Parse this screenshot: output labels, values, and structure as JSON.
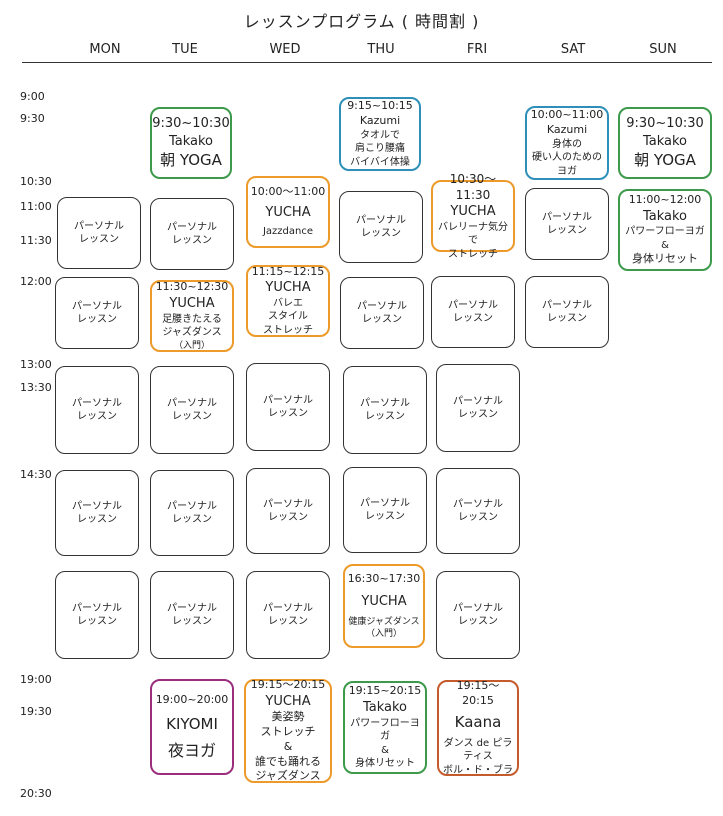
{
  "title": "レッスンプログラム ( 時間割 )",
  "days": [
    "MON",
    "TUE",
    "WED",
    "THU",
    "FRI",
    "SAT",
    "SUN"
  ],
  "times": [
    "9:00",
    "9:30",
    "10:30",
    "11:00",
    "11:30",
    "12:00",
    "13:00",
    "13:30",
    "14:30",
    "19:00",
    "19:30",
    "20:30"
  ],
  "personal": [
    "パーソナル",
    "レッスン"
  ],
  "colors": {
    "green": "#3c9a4a",
    "blue": "#2e8fb9",
    "orange": "#ec9a2a",
    "purple": "#9b2f7e",
    "brown": "#c55a2c"
  },
  "events": [
    {
      "id": "tue-930",
      "lines": [
        "9:30~10:30",
        "Takako",
        "朝 YOGA"
      ]
    },
    {
      "id": "thu-915",
      "lines": [
        "9:15~10:15",
        "Kazumi",
        "タオルで",
        "肩こり腰痛",
        "バイバイ体操"
      ]
    },
    {
      "id": "sat-1000",
      "lines": [
        "10:00~11:00",
        "Kazumi",
        "身体の",
        "硬い人のための",
        "ヨガ"
      ]
    },
    {
      "id": "sun-930",
      "lines": [
        "9:30~10:30",
        "Takako",
        "朝 YOGA"
      ]
    },
    {
      "id": "wed-1000",
      "lines": [
        "10:00～11:00",
        "YUCHA",
        "Jazzdance"
      ]
    },
    {
      "id": "fri-1030",
      "lines": [
        "10:30～11:30",
        "YUCHA",
        "バレリーナ気分で",
        "ストレッチ"
      ]
    },
    {
      "id": "sun-1100",
      "lines": [
        "11:00~12:00",
        "Takako",
        "パワーフローヨガ",
        "&",
        "身体リセット"
      ]
    },
    {
      "id": "tue-1130",
      "lines": [
        "11:30~12:30",
        "YUCHA",
        "足腰きたえる",
        "ジャズダンス",
        "（入門）"
      ]
    },
    {
      "id": "wed-1115",
      "lines": [
        "11:15~12:15",
        "YUCHA",
        "バレエ",
        "スタイル",
        "ストレッチ"
      ]
    },
    {
      "id": "thu-1630",
      "lines": [
        "16:30~17:30",
        "YUCHA",
        "健康ジャズダンス",
        "（入門）"
      ]
    },
    {
      "id": "tue-1900",
      "lines": [
        "19:00~20:00",
        "KIYOMI",
        "夜ヨガ"
      ]
    },
    {
      "id": "wed-1915",
      "lines": [
        "19:15～20:15",
        "YUCHA",
        "美姿勢",
        "ストレッチ",
        "&",
        "誰でも踊れる",
        "ジャズダンス"
      ]
    },
    {
      "id": "thu-1915",
      "lines": [
        "19:15~20:15",
        "Takako",
        "パワーフローヨガ",
        "&",
        "身体リセット"
      ]
    },
    {
      "id": "fri-1915",
      "lines": [
        "19:15～20:15",
        "Kaana",
        "ダンス de ピラティス",
        "ボル・ド・ブラ"
      ]
    }
  ]
}
